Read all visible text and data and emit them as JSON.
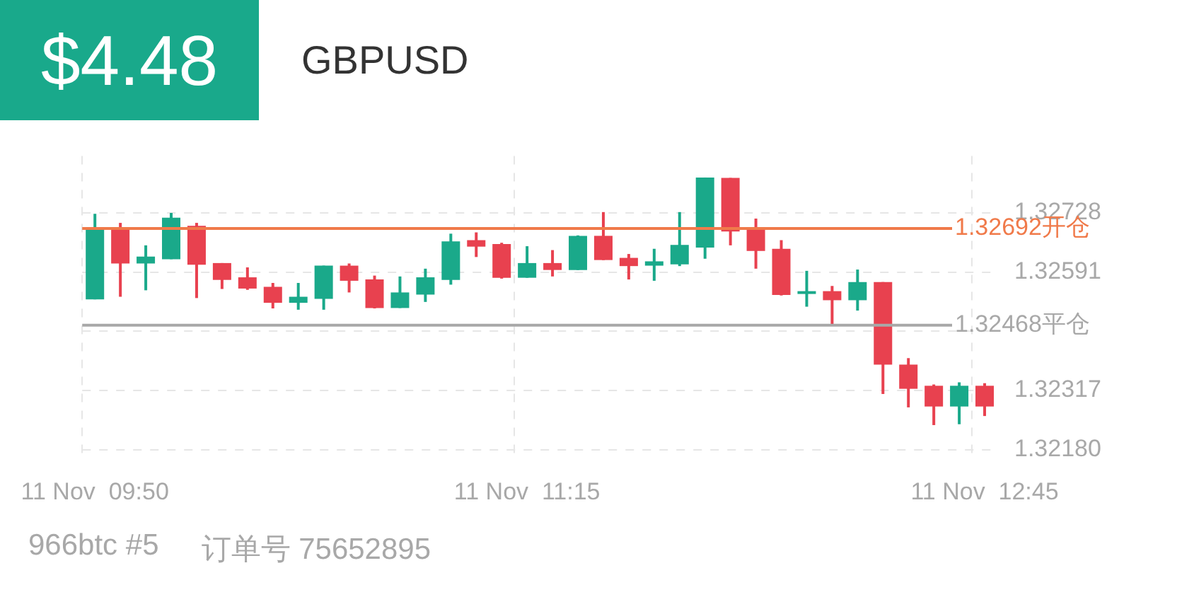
{
  "chart_data": {
    "type": "candlestick",
    "title": "GBPUSD",
    "subtitle": "$4.48",
    "categories": [
      "11 Nov  09:50",
      null,
      null,
      null,
      null,
      null,
      null,
      null,
      null,
      null,
      null,
      null,
      null,
      null,
      null,
      null,
      null,
      "11 Nov  11:15",
      null,
      null,
      null,
      null,
      null,
      null,
      null,
      null,
      null,
      null,
      null,
      null,
      null,
      null,
      null,
      null,
      null,
      "11 Nov  12:45"
    ],
    "ohlc": [
      [
        1.32528,
        1.32726,
        1.32528,
        1.3269
      ],
      [
        1.3269,
        1.32705,
        1.32534,
        1.32611
      ],
      [
        1.32611,
        1.32653,
        1.32549,
        1.32627
      ],
      [
        1.32621,
        1.32728,
        1.32621,
        1.32717
      ],
      [
        1.32698,
        1.32705,
        1.32531,
        1.32608
      ],
      [
        1.32612,
        1.32612,
        1.32552,
        1.32573
      ],
      [
        1.32579,
        1.32602,
        1.3255,
        1.32553
      ],
      [
        1.32557,
        1.32566,
        1.32507,
        1.3252
      ],
      [
        1.3252,
        1.32566,
        1.32504,
        1.32534
      ],
      [
        1.32529,
        1.32606,
        1.32504,
        1.32606
      ],
      [
        1.32606,
        1.32611,
        1.32544,
        1.32571
      ],
      [
        1.32574,
        1.32583,
        1.32507,
        1.32508
      ],
      [
        1.32508,
        1.32581,
        1.32508,
        1.32544
      ],
      [
        1.32539,
        1.32599,
        1.32522,
        1.32579
      ],
      [
        1.32573,
        1.3268,
        1.32562,
        1.32662
      ],
      [
        1.32665,
        1.32683,
        1.32626,
        1.3265
      ],
      [
        1.32656,
        1.32659,
        1.32576,
        1.32578
      ],
      [
        1.32578,
        1.32651,
        1.32578,
        1.32612
      ],
      [
        1.32612,
        1.32642,
        1.32581,
        1.32596
      ],
      [
        1.32596,
        1.32676,
        1.32596,
        1.32675
      ],
      [
        1.32675,
        1.3273,
        1.32619,
        1.32619
      ],
      [
        1.32624,
        1.32633,
        1.32574,
        1.32605
      ],
      [
        1.32606,
        1.32645,
        1.32571,
        1.32616
      ],
      [
        1.32609,
        1.3273,
        1.32605,
        1.32654
      ],
      [
        1.32648,
        1.3281,
        1.32622,
        1.3281
      ],
      [
        1.32809,
        1.32809,
        1.32653,
        1.32685
      ],
      [
        1.3269,
        1.32715,
        1.32599,
        1.3264
      ],
      [
        1.32645,
        1.32665,
        1.32537,
        1.32538
      ],
      [
        1.32541,
        1.32594,
        1.32511,
        1.32547
      ],
      [
        1.32547,
        1.32559,
        1.32468,
        1.32526
      ],
      [
        1.32526,
        1.32597,
        1.32502,
        1.32568
      ],
      [
        1.32568,
        1.32568,
        1.32309,
        1.32377
      ],
      [
        1.32377,
        1.32392,
        1.32278,
        1.32321
      ],
      [
        1.32328,
        1.32331,
        1.32237,
        1.3228
      ],
      [
        1.3228,
        1.32336,
        1.32239,
        1.32328
      ],
      [
        1.32328,
        1.32334,
        1.32258,
        1.3228
      ]
    ],
    "colors": [
      "#1aa98a",
      "#e8414f",
      "#1aa98a",
      "#1aa98a",
      "#e8414f",
      "#e8414f",
      "#e8414f",
      "#e8414f",
      "#1aa98a",
      "#1aa98a",
      "#e8414f",
      "#e8414f",
      "#1aa98a",
      "#1aa98a",
      "#1aa98a",
      "#e8414f",
      "#e8414f",
      "#1aa98a",
      "#e8414f",
      "#1aa98a",
      "#e8414f",
      "#e8414f",
      "#1aa98a",
      "#1aa98a",
      "#1aa98a",
      "#e8414f",
      "#e8414f",
      "#e8414f",
      "#1aa98a",
      "#e8414f",
      "#1aa98a",
      "#e8414f",
      "#e8414f",
      "#e8414f",
      "#1aa98a",
      "#e8414f"
    ],
    "ylim": [
      1.3216,
      1.3286
    ],
    "yticks": [
      {
        "value": 1.3218,
        "label": "1.32180"
      },
      1.32317,
      {
        "value": 1.32454,
        "label": null
      },
      1.32591,
      1.32728
    ],
    "ref_lines": [
      {
        "axis": "y",
        "value": 1.32692,
        "label": "1.32692开仓",
        "color": "#f07a4a"
      },
      {
        "axis": "y",
        "value": 1.32468,
        "label": "1.32468平仓",
        "color": "#a8a8a8"
      }
    ],
    "grid": true,
    "annotations": [
      "966btc #5",
      "订单号 75652895"
    ]
  }
}
